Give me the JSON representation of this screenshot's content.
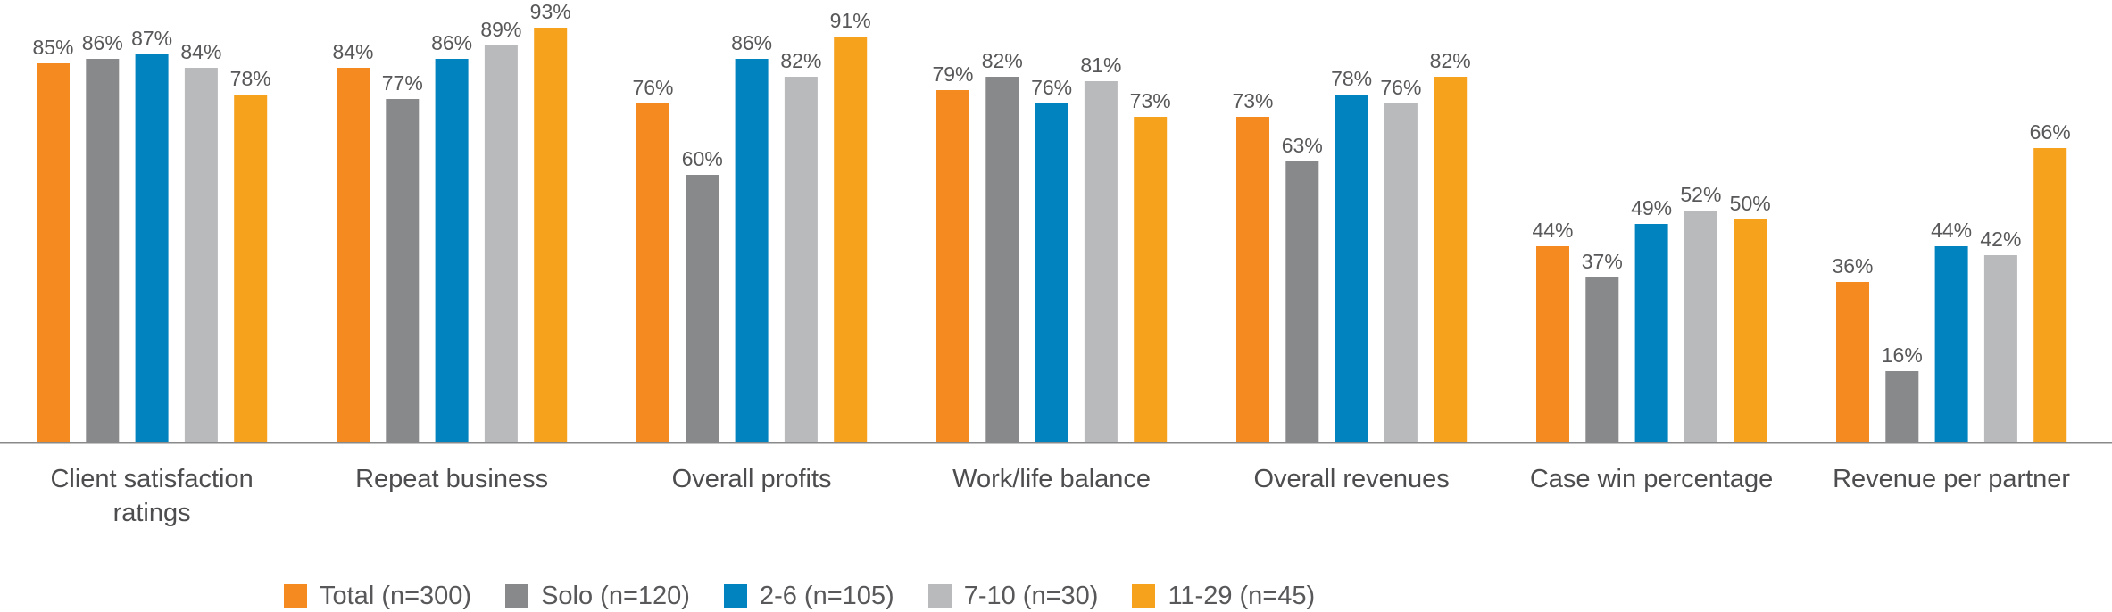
{
  "chart_data": {
    "type": "bar",
    "title": "",
    "xlabel": "",
    "ylabel": "",
    "ylim": [
      0,
      100
    ],
    "grid": false,
    "legend_position": "bottom-center",
    "categories": [
      "Client satisfaction ratings",
      "Repeat business",
      "Overall profits",
      "Work/life balance",
      "Overall revenues",
      "Case win percentage",
      "Revenue per partner"
    ],
    "category_lines": [
      [
        "Client satisfaction",
        "ratings"
      ],
      [
        "Repeat business"
      ],
      [
        "Overall profits"
      ],
      [
        "Work/life balance"
      ],
      [
        "Overall revenues"
      ],
      [
        "Case win percentage"
      ],
      [
        "Revenue per partner"
      ]
    ],
    "series": [
      {
        "name": "Total (n=300)",
        "color": "#F58A21",
        "values": [
          85,
          84,
          76,
          79,
          73,
          44,
          36
        ]
      },
      {
        "name": "Solo (n=120)",
        "color": "#88898B",
        "values": [
          86,
          77,
          60,
          82,
          63,
          37,
          16
        ]
      },
      {
        "name": "2-6 (n=105)",
        "color": "#0083BE",
        "values": [
          87,
          86,
          86,
          76,
          78,
          49,
          44
        ]
      },
      {
        "name": "7-10 (n=30)",
        "color": "#B9BABC",
        "values": [
          84,
          89,
          82,
          81,
          76,
          52,
          42
        ]
      },
      {
        "name": "11-29 (n=45)",
        "color": "#F7A21D",
        "values": [
          78,
          93,
          91,
          73,
          82,
          50,
          66
        ]
      }
    ],
    "value_suffix": "%"
  }
}
